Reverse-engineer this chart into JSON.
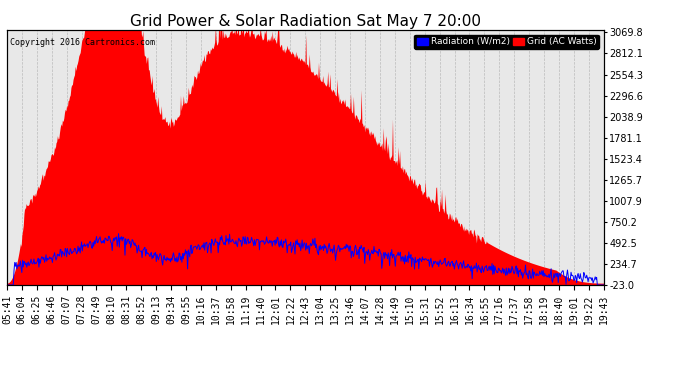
{
  "title": "Grid Power & Solar Radiation Sat May 7 20:00",
  "copyright": "Copyright 2016 Cartronics.com",
  "legend_labels": [
    "Radiation (W/m2)",
    "Grid (AC Watts)"
  ],
  "legend_colors": [
    "blue",
    "red"
  ],
  "ylabel_right_ticks": [
    3069.8,
    2812.1,
    2554.3,
    2296.6,
    2038.9,
    1781.1,
    1523.4,
    1265.7,
    1007.9,
    750.2,
    492.5,
    234.7,
    -23.0
  ],
  "ymin": -23.0,
  "ymax": 3069.8,
  "background_color": "#ffffff",
  "plot_bg_color": "#e8e8e8",
  "grid_color": "#bbbbbb",
  "red_fill_color": "#ff0000",
  "blue_line_color": "#0000ff",
  "title_fontsize": 11,
  "tick_fontsize": 7,
  "n_points": 840,
  "x_tick_labels": [
    "05:41",
    "06:04",
    "06:25",
    "06:46",
    "07:07",
    "07:28",
    "07:49",
    "08:10",
    "08:31",
    "08:52",
    "09:13",
    "09:34",
    "09:55",
    "10:16",
    "10:37",
    "10:58",
    "11:19",
    "11:40",
    "12:01",
    "12:22",
    "12:43",
    "13:04",
    "13:25",
    "13:46",
    "14:07",
    "14:28",
    "14:49",
    "15:10",
    "15:31",
    "15:52",
    "16:13",
    "16:34",
    "16:55",
    "17:16",
    "17:37",
    "17:58",
    "18:19",
    "18:40",
    "19:01",
    "19:22",
    "19:43"
  ]
}
